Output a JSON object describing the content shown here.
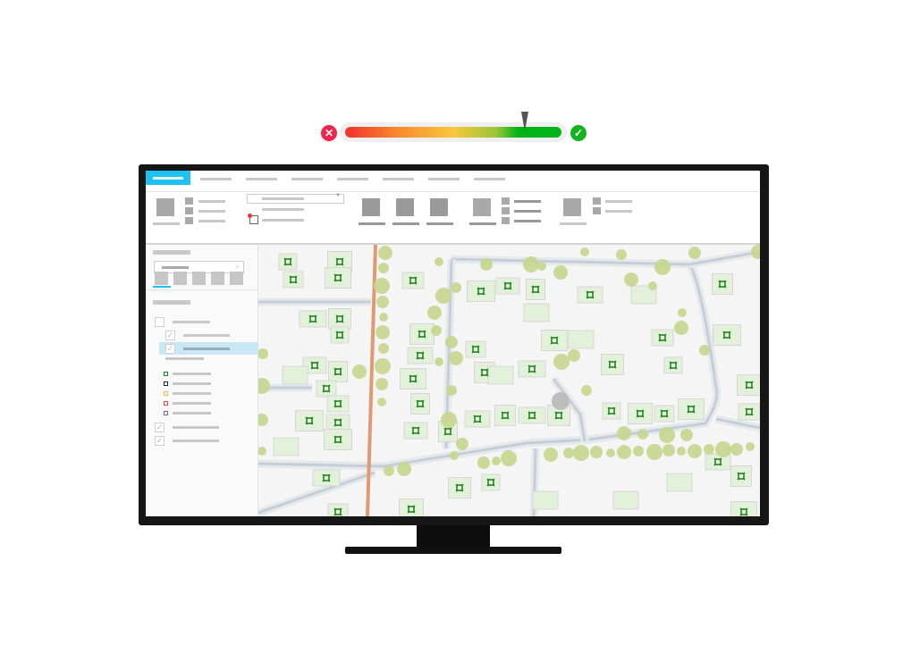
{
  "gauge": {
    "value": 0.83,
    "min_icon": "error-x-icon",
    "max_icon": "success-check-icon",
    "colors": {
      "low": "#f0302f",
      "mid": "#f8c73e",
      "high": "#00b319",
      "error": "#f0264a",
      "success": "#13b31f"
    }
  },
  "app": {
    "active_tab_color": "#1ec1f0",
    "tab_count": 8,
    "selection_color": "#c8e8f8",
    "search_icon": "search-icon",
    "legend_symbols": [
      {
        "color": "#1a7f1a"
      },
      {
        "color": "#222222"
      },
      {
        "color": "#f2b84b"
      },
      {
        "color": "#e04646"
      },
      {
        "color": "#8a5aa0"
      }
    ],
    "layers": [
      {
        "checked": false,
        "level": 0
      },
      {
        "checked": true,
        "level": 1
      },
      {
        "checked": true,
        "level": 1,
        "selected": true
      },
      {
        "checked": true,
        "level": 0
      },
      {
        "checked": true,
        "level": 0
      }
    ]
  },
  "map": {
    "colors": {
      "building": "#e3f0da",
      "building_stroke": "#d6d6d6",
      "tree": "#c7d68e",
      "road": "#c5ced8",
      "main_road": "#e09a73",
      "marker": "#1a7f1a",
      "selection": "#bdbdbd"
    }
  }
}
